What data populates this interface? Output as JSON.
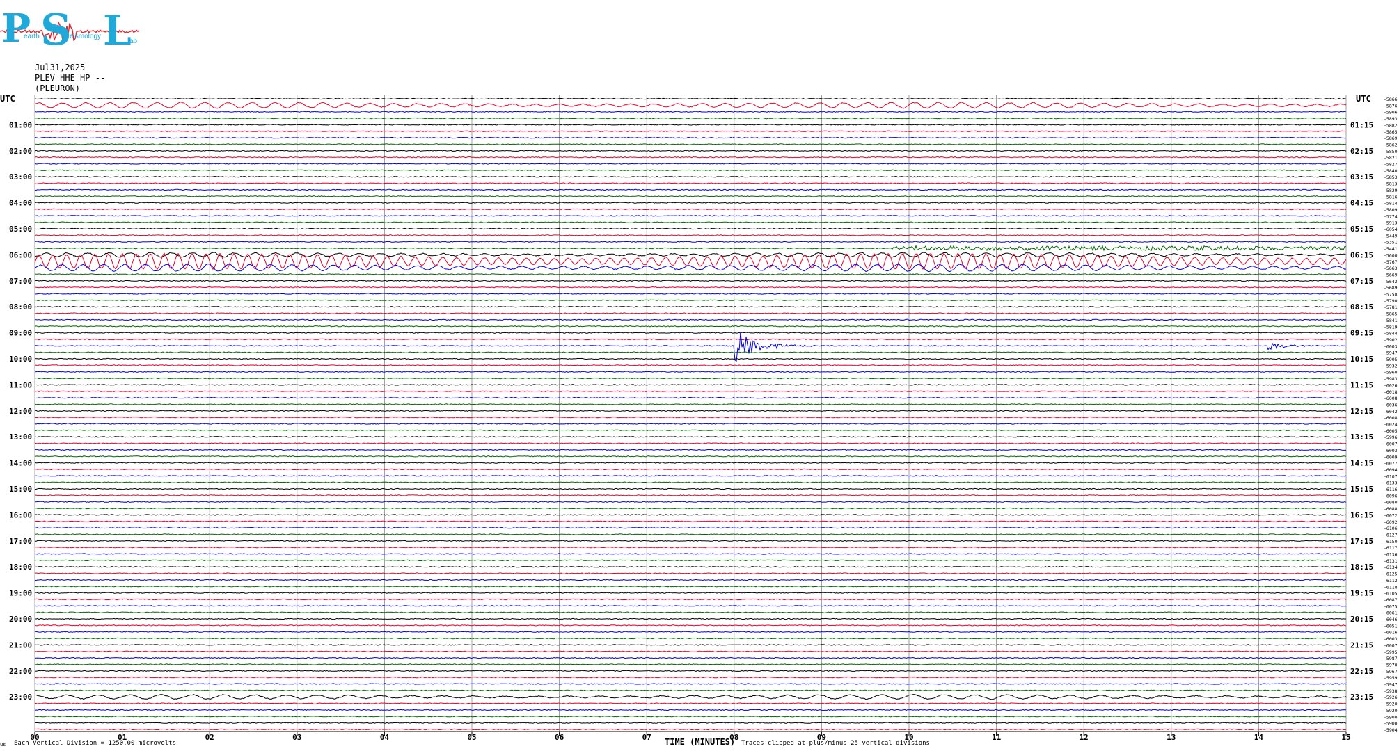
{
  "logo": {
    "letters": [
      "P",
      "S",
      "L"
    ],
    "words": [
      "earth",
      "eismology",
      "ab"
    ],
    "colors": {
      "letters": "#1fa8d8",
      "trace": "#e8232a"
    }
  },
  "header": {
    "date": "Jul31,2025",
    "station": "PLEV HHE HP --",
    "location": "(PLEURON)"
  },
  "chart_data": {
    "type": "line",
    "title": "",
    "xlabel": "TIME (MINUTES)",
    "footnote_left": "Each Vertical Division = 1250.00 microvolts",
    "footnote_right": "Traces clipped at plus/minus 25 vertical divisions",
    "corner_mark": "us",
    "xlim": [
      0,
      15
    ],
    "x_ticks": [
      "00",
      "01",
      "02",
      "03",
      "04",
      "05",
      "06",
      "07",
      "08",
      "09",
      "10",
      "11",
      "12",
      "13",
      "14",
      "15"
    ],
    "left_axis_label": "UTC",
    "right_axis_label": "UTC",
    "left_hour_labels": [
      "01:00",
      "02:00",
      "03:00",
      "04:00",
      "05:00",
      "06:00",
      "07:00",
      "08:00",
      "09:00",
      "10:00",
      "11:00",
      "12:00",
      "13:00",
      "14:00",
      "15:00",
      "16:00",
      "17:00",
      "18:00",
      "19:00",
      "20:00",
      "21:00",
      "22:00",
      "23:00"
    ],
    "right_hour_labels": [
      "01:15",
      "02:15",
      "03:15",
      "04:15",
      "05:15",
      "06:15",
      "07:15",
      "08:15",
      "09:15",
      "10:15",
      "11:15",
      "12:15",
      "13:15",
      "14:15",
      "15:15",
      "16:15",
      "17:15",
      "18:15",
      "19:15",
      "20:15",
      "21:15",
      "22:15",
      "23:15"
    ],
    "trace_colors": [
      "#000000",
      "#e8002a",
      "#0000e0",
      "#006600"
    ],
    "trace_offsets": [
      "-5866",
      "-5876",
      "-5906",
      "-5893",
      "-5882",
      "-5865",
      "-5869",
      "-5862",
      "-5850",
      "-5821",
      "-5827",
      "-5840",
      "-5853",
      "-5813",
      "-5829",
      "-5816",
      "-5814",
      "-5809",
      "-5774",
      "-5913",
      "-6054",
      "-5449",
      "-5351",
      "-5441",
      "-5600",
      "-5767",
      "-5663",
      "-5669",
      "-5642",
      "-5689",
      "-5758",
      "-5790",
      "-5781",
      "-5865",
      "-5841",
      "-5819",
      "-5844",
      "-5902",
      "-6003",
      "-5947",
      "-5905",
      "-5932",
      "-5960",
      "-5983",
      "-6026",
      "-6018",
      "-6008",
      "-6036",
      "-6042",
      "-6008",
      "-6024",
      "-6005",
      "-5996",
      "-6007",
      "-6003",
      "-6009",
      "-6077",
      "-6094",
      "-6107",
      "-6133",
      "-6116",
      "-6096",
      "-6080",
      "-6088",
      "-6072",
      "-6092",
      "-6106",
      "-6127",
      "-6150",
      "-6117",
      "-6136",
      "-6131",
      "-6134",
      "-6125",
      "-6112",
      "-6118",
      "-6105",
      "-6087",
      "-6075",
      "-6061",
      "-6046",
      "-6051",
      "-6016",
      "-6003",
      "-6007",
      "-5995",
      "-5987",
      "-5970",
      "-5967",
      "-5959",
      "-5947",
      "-5938",
      "-5926",
      "-5920",
      "-5920",
      "-5900",
      "-5900",
      "-5904"
    ],
    "events": [
      {
        "trace_index": 38,
        "minute_start": 8.0,
        "minute_end": 9.1,
        "label": ""
      },
      {
        "trace_index": 38,
        "minute_start": 14.1,
        "minute_end": 14.9,
        "label": ""
      }
    ],
    "grid": true
  }
}
